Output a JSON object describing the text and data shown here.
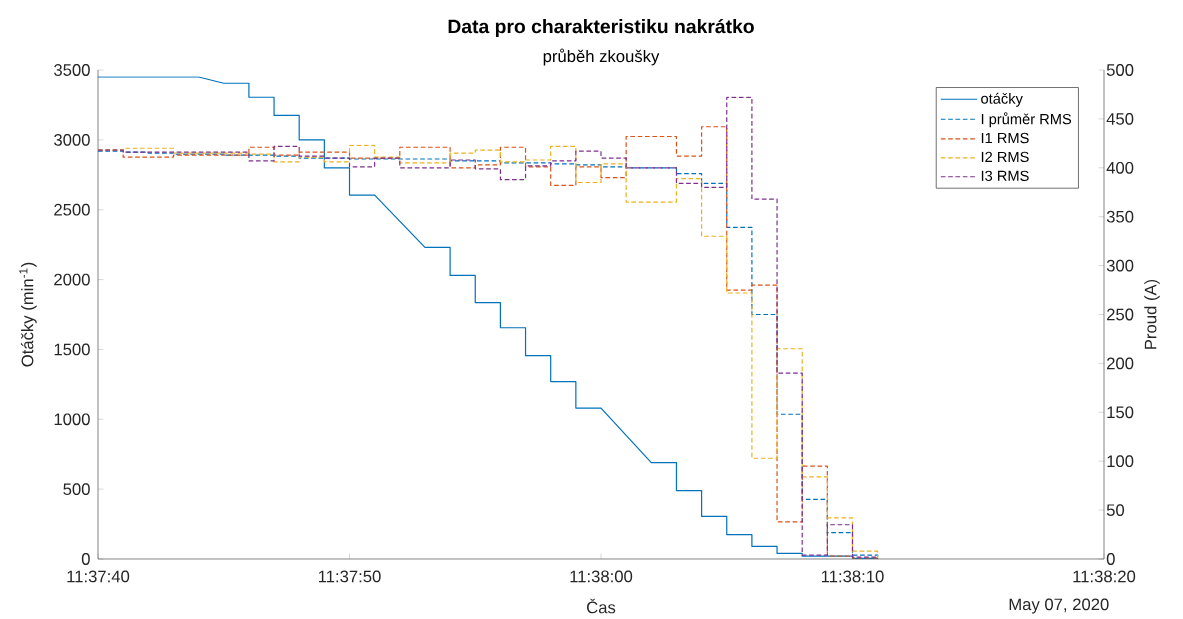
{
  "chart_data": {
    "type": "line",
    "title": "Data pro charakteristiku nakrátko",
    "subtitle": "průběh zkoušky",
    "xlabel": "Čas",
    "ylabel": "Otáčky (min$^{-1}$)",
    "y2label": "Proud (A)",
    "annotations": [
      "May 07, 2020"
    ],
    "x": [
      "2020-05-07T11:37:40",
      "2020-05-07T11:37:41",
      "2020-05-07T11:37:42",
      "2020-05-07T11:37:43",
      "2020-05-07T11:37:44",
      "2020-05-07T11:37:45",
      "2020-05-07T11:37:46",
      "2020-05-07T11:37:47",
      "2020-05-07T11:37:48",
      "2020-05-07T11:37:49",
      "2020-05-07T11:37:50",
      "2020-05-07T11:37:51",
      "2020-05-07T11:37:52",
      "2020-05-07T11:37:53",
      "2020-05-07T11:37:54",
      "2020-05-07T11:37:55",
      "2020-05-07T11:37:56",
      "2020-05-07T11:37:57",
      "2020-05-07T11:37:58",
      "2020-05-07T11:37:59",
      "2020-05-07T11:38:00",
      "2020-05-07T11:38:01",
      "2020-05-07T11:38:02",
      "2020-05-07T11:38:03",
      "2020-05-07T11:38:04",
      "2020-05-07T11:38:05",
      "2020-05-07T11:38:06",
      "2020-05-07T11:38:07",
      "2020-05-07T11:38:08",
      "2020-05-07T11:38:09",
      "2020-05-07T11:38:10",
      "2020-05-07T11:38:11"
    ],
    "series": [
      {
        "name": "otáčky",
        "color": "#0072bd",
        "line_style": "solid",
        "x": [
          "2020-05-07T11:37:40",
          "2020-05-07T11:37:44",
          "2020-05-07T11:37:45",
          "2020-05-07T11:37:46",
          "2020-05-07T11:37:46",
          "2020-05-07T11:37:47",
          "2020-05-07T11:37:47",
          "2020-05-07T11:37:48",
          "2020-05-07T11:37:48",
          "2020-05-07T11:37:49",
          "2020-05-07T11:37:49",
          "2020-05-07T11:37:50",
          "2020-05-07T11:37:50",
          "2020-05-07T11:37:51",
          "2020-05-07T11:37:53",
          "2020-05-07T11:37:54",
          "2020-05-07T11:37:54",
          "2020-05-07T11:37:55",
          "2020-05-07T11:37:55",
          "2020-05-07T11:37:56",
          "2020-05-07T11:37:56",
          "2020-05-07T11:37:57",
          "2020-05-07T11:37:57",
          "2020-05-07T11:37:58",
          "2020-05-07T11:37:58",
          "2020-05-07T11:37:59",
          "2020-05-07T11:37:59",
          "2020-05-07T11:38:00",
          "2020-05-07T11:38:02",
          "2020-05-07T11:38:03",
          "2020-05-07T11:38:03",
          "2020-05-07T11:38:04",
          "2020-05-07T11:38:04",
          "2020-05-07T11:38:05",
          "2020-05-07T11:38:05",
          "2020-05-07T11:38:06",
          "2020-05-07T11:38:06",
          "2020-05-07T11:38:07",
          "2020-05-07T11:38:07",
          "2020-05-07T11:38:08",
          "2020-05-07T11:38:08",
          "2020-05-07T11:38:10",
          "2020-05-07T11:38:10",
          "2020-05-07T11:38:11"
        ],
        "values": [
          3450,
          3450,
          3405,
          3405,
          3305,
          3305,
          3175,
          3175,
          3000,
          3000,
          2800,
          2800,
          2605,
          2605,
          2230,
          2230,
          2030,
          2030,
          1835,
          1835,
          1655,
          1655,
          1455,
          1455,
          1270,
          1270,
          1080,
          1080,
          690,
          690,
          490,
          490,
          305,
          305,
          175,
          175,
          90,
          90,
          40,
          40,
          20,
          20,
          5,
          5
        ]
      },
      {
        "name": "I průměr RMS",
        "type": "step",
        "axis": "y2",
        "color": "#0072bd",
        "line_style": "dashed",
        "values": [
          417,
          416,
          415,
          414,
          414,
          413,
          413,
          412,
          410,
          410,
          409,
          409,
          409,
          409,
          407,
          407,
          405,
          405,
          404,
          403,
          401,
          400,
          400,
          394,
          384,
          339,
          250,
          148,
          61,
          27,
          4,
          0
        ]
      },
      {
        "name": "I1 RMS",
        "type": "step",
        "axis": "y2",
        "color": "#d95319",
        "line_style": "dashed",
        "values": [
          418,
          411,
          411,
          413,
          413,
          413,
          421,
          413,
          416,
          416,
          410,
          410,
          421,
          421,
          400,
          403,
          421,
          401,
          382,
          401,
          390,
          432,
          432,
          412,
          442,
          275,
          280,
          38,
          95,
          3,
          1,
          0
        ]
      },
      {
        "name": "I2 RMS",
        "type": "step",
        "axis": "y2",
        "color": "#edb120",
        "line_style": "dashed",
        "values": [
          418,
          420,
          420,
          415,
          415,
          415,
          414,
          406,
          411,
          406,
          423,
          411,
          405,
          405,
          415,
          418,
          406,
          408,
          422,
          385,
          404,
          365,
          365,
          389,
          330,
          272,
          103,
          215,
          84,
          42,
          8,
          0
        ]
      },
      {
        "name": "I3 RMS",
        "type": "step",
        "axis": "y2",
        "color": "#7e2f8e",
        "line_style": "dashed",
        "values": [
          418,
          416,
          416,
          416,
          416,
          416,
          407,
          422,
          412,
          410,
          401,
          410,
          400,
          400,
          408,
          399,
          388,
          402,
          407,
          417,
          410,
          400,
          400,
          384,
          380,
          472,
          368,
          190,
          4,
          35,
          2,
          0
        ]
      }
    ],
    "xlim": [
      "2020-05-07T11:37:40",
      "2020-05-07T11:38:20"
    ],
    "xticks": [
      {
        "value": "2020-05-07T11:37:40",
        "label": "11:37:40"
      },
      {
        "value": "2020-05-07T11:37:50",
        "label": "11:37:50"
      },
      {
        "value": "2020-05-07T11:38:00",
        "label": "11:38:00"
      },
      {
        "value": "2020-05-07T11:38:10",
        "label": "11:38:10"
      },
      {
        "value": "2020-05-07T11:38:20",
        "label": "11:38:20"
      }
    ],
    "ylim": [
      0,
      3500
    ],
    "yticks": [
      0,
      500,
      1000,
      1500,
      2000,
      2500,
      3000,
      3500
    ],
    "y2lim": [
      0,
      500
    ],
    "y2ticks": [
      0,
      50,
      100,
      150,
      200,
      250,
      300,
      350,
      400,
      450,
      500
    ],
    "legend": "top right"
  }
}
